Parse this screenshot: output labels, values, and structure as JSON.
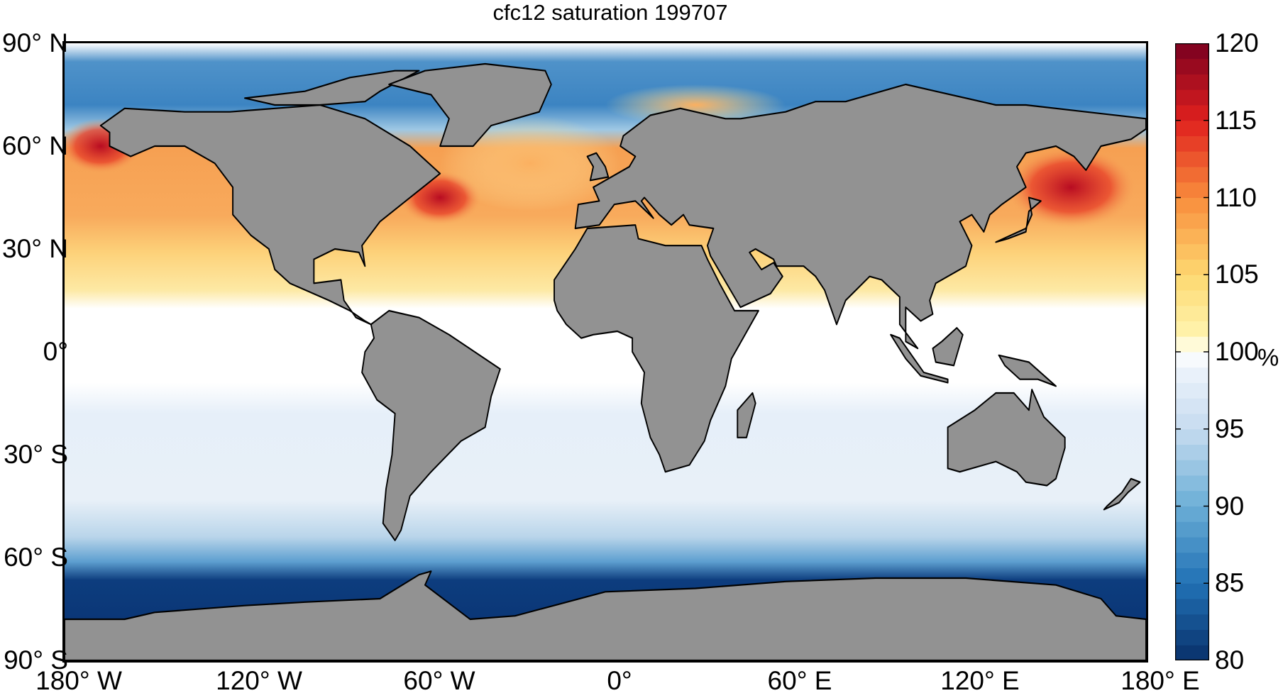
{
  "title": "cfc12 saturation 199707",
  "lat_ticks": [
    {
      "lat": 90,
      "label": "90° N"
    },
    {
      "lat": 60,
      "label": "60° N"
    },
    {
      "lat": 30,
      "label": "30° N"
    },
    {
      "lat": 0,
      "label": "0°"
    },
    {
      "lat": -30,
      "label": "30° S"
    },
    {
      "lat": -60,
      "label": "60° S"
    },
    {
      "lat": -90,
      "label": "90° S"
    }
  ],
  "lon_ticks": [
    {
      "lon": -180,
      "label": "180° W"
    },
    {
      "lon": -120,
      "label": "120° W"
    },
    {
      "lon": -60,
      "label": "60° W"
    },
    {
      "lon": 0,
      "label": "0°"
    },
    {
      "lon": 60,
      "label": "60° E"
    },
    {
      "lon": 120,
      "label": "120° E"
    },
    {
      "lon": 180,
      "label": "180° E"
    }
  ],
  "colorbar": {
    "min": 80,
    "max": 120,
    "levels": 40,
    "ticks": [
      "80",
      "85",
      "90",
      "95",
      "100",
      "105",
      "110",
      "115",
      "120"
    ],
    "unit": "%",
    "stops": [
      {
        "v": 80,
        "c": "#08306b"
      },
      {
        "v": 85,
        "c": "#2171b5"
      },
      {
        "v": 90,
        "c": "#6baed6"
      },
      {
        "v": 95,
        "c": "#c6dbef"
      },
      {
        "v": 99,
        "c": "#eef4fb"
      },
      {
        "v": 100,
        "c": "#ffffff"
      },
      {
        "v": 101,
        "c": "#fff4b0"
      },
      {
        "v": 105,
        "c": "#fdd870"
      },
      {
        "v": 110,
        "c": "#f88c3c"
      },
      {
        "v": 115,
        "c": "#e0201e"
      },
      {
        "v": 120,
        "c": "#7a0020"
      }
    ]
  },
  "colors": {
    "land": "#929292",
    "coast": "#000000"
  }
}
